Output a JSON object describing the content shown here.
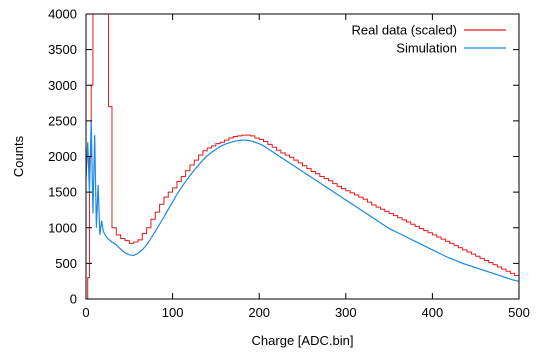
{
  "chart_data": {
    "type": "line",
    "title": "",
    "xlabel": "Charge [ADC.bin]",
    "ylabel": "Counts",
    "xlim": [
      0,
      500
    ],
    "ylim": [
      0,
      4000
    ],
    "xticks": [
      0,
      100,
      200,
      300,
      400,
      500
    ],
    "yticks": [
      0,
      500,
      1000,
      1500,
      2000,
      2500,
      3000,
      3500,
      4000
    ],
    "grid": false,
    "legend_position": "top-right",
    "series": [
      {
        "name": "Real data (scaled)",
        "color": "#e41a1c",
        "style": "step",
        "points": [
          [
            0,
            0
          ],
          [
            2,
            300
          ],
          [
            4,
            2000
          ],
          [
            6,
            3000
          ],
          [
            8,
            4000
          ],
          [
            10,
            4000
          ],
          [
            15,
            4000
          ],
          [
            20,
            4000
          ],
          [
            22,
            4000
          ],
          [
            24,
            4000
          ],
          [
            26,
            2700
          ],
          [
            28,
            2700
          ],
          [
            30,
            1000
          ],
          [
            35,
            900
          ],
          [
            40,
            850
          ],
          [
            45,
            820
          ],
          [
            50,
            780
          ],
          [
            55,
            800
          ],
          [
            60,
            830
          ],
          [
            65,
            920
          ],
          [
            70,
            1000
          ],
          [
            75,
            1120
          ],
          [
            80,
            1220
          ],
          [
            85,
            1330
          ],
          [
            90,
            1430
          ],
          [
            95,
            1500
          ],
          [
            100,
            1560
          ],
          [
            105,
            1650
          ],
          [
            110,
            1720
          ],
          [
            115,
            1800
          ],
          [
            120,
            1880
          ],
          [
            125,
            1950
          ],
          [
            130,
            2020
          ],
          [
            135,
            2080
          ],
          [
            140,
            2120
          ],
          [
            145,
            2150
          ],
          [
            150,
            2180
          ],
          [
            155,
            2200
          ],
          [
            160,
            2230
          ],
          [
            165,
            2260
          ],
          [
            170,
            2280
          ],
          [
            175,
            2290
          ],
          [
            180,
            2300
          ],
          [
            185,
            2300
          ],
          [
            190,
            2290
          ],
          [
            195,
            2260
          ],
          [
            200,
            2240
          ],
          [
            205,
            2210
          ],
          [
            210,
            2170
          ],
          [
            215,
            2130
          ],
          [
            220,
            2090
          ],
          [
            225,
            2050
          ],
          [
            230,
            2020
          ],
          [
            235,
            1990
          ],
          [
            240,
            1950
          ],
          [
            245,
            1910
          ],
          [
            250,
            1870
          ],
          [
            255,
            1830
          ],
          [
            260,
            1790
          ],
          [
            265,
            1760
          ],
          [
            270,
            1720
          ],
          [
            275,
            1690
          ],
          [
            280,
            1660
          ],
          [
            285,
            1620
          ],
          [
            290,
            1580
          ],
          [
            295,
            1550
          ],
          [
            300,
            1520
          ],
          [
            305,
            1490
          ],
          [
            310,
            1460
          ],
          [
            315,
            1430
          ],
          [
            320,
            1400
          ],
          [
            325,
            1360
          ],
          [
            330,
            1320
          ],
          [
            335,
            1290
          ],
          [
            340,
            1260
          ],
          [
            345,
            1230
          ],
          [
            350,
            1200
          ],
          [
            355,
            1170
          ],
          [
            360,
            1140
          ],
          [
            365,
            1110
          ],
          [
            370,
            1080
          ],
          [
            375,
            1050
          ],
          [
            380,
            1020
          ],
          [
            385,
            990
          ],
          [
            390,
            960
          ],
          [
            395,
            930
          ],
          [
            400,
            900
          ],
          [
            405,
            870
          ],
          [
            410,
            840
          ],
          [
            415,
            810
          ],
          [
            420,
            780
          ],
          [
            425,
            750
          ],
          [
            430,
            720
          ],
          [
            435,
            690
          ],
          [
            440,
            660
          ],
          [
            445,
            630
          ],
          [
            450,
            600
          ],
          [
            455,
            570
          ],
          [
            460,
            540
          ],
          [
            465,
            510
          ],
          [
            470,
            480
          ],
          [
            475,
            450
          ],
          [
            480,
            420
          ],
          [
            485,
            390
          ],
          [
            490,
            360
          ],
          [
            495,
            330
          ],
          [
            500,
            300
          ]
        ]
      },
      {
        "name": "Simulation",
        "color": "#1e88e5",
        "style": "line",
        "points": [
          [
            0,
            1700
          ],
          [
            2,
            2200
          ],
          [
            4,
            1500
          ],
          [
            6,
            2500
          ],
          [
            8,
            1200
          ],
          [
            10,
            2300
          ],
          [
            12,
            1000
          ],
          [
            14,
            1600
          ],
          [
            16,
            900
          ],
          [
            18,
            1100
          ],
          [
            20,
            950
          ],
          [
            22,
            900
          ],
          [
            25,
            850
          ],
          [
            30,
            800
          ],
          [
            35,
            760
          ],
          [
            40,
            700
          ],
          [
            45,
            650
          ],
          [
            50,
            620
          ],
          [
            55,
            610
          ],
          [
            60,
            640
          ],
          [
            65,
            690
          ],
          [
            70,
            760
          ],
          [
            75,
            850
          ],
          [
            80,
            950
          ],
          [
            85,
            1050
          ],
          [
            90,
            1150
          ],
          [
            95,
            1260
          ],
          [
            100,
            1360
          ],
          [
            105,
            1470
          ],
          [
            110,
            1560
          ],
          [
            115,
            1650
          ],
          [
            120,
            1730
          ],
          [
            125,
            1810
          ],
          [
            130,
            1880
          ],
          [
            135,
            1950
          ],
          [
            140,
            2010
          ],
          [
            145,
            2060
          ],
          [
            150,
            2100
          ],
          [
            155,
            2140
          ],
          [
            160,
            2170
          ],
          [
            165,
            2190
          ],
          [
            170,
            2210
          ],
          [
            175,
            2220
          ],
          [
            180,
            2230
          ],
          [
            185,
            2230
          ],
          [
            190,
            2220
          ],
          [
            195,
            2200
          ],
          [
            200,
            2180
          ],
          [
            205,
            2150
          ],
          [
            210,
            2110
          ],
          [
            215,
            2070
          ],
          [
            220,
            2030
          ],
          [
            225,
            1990
          ],
          [
            230,
            1950
          ],
          [
            235,
            1910
          ],
          [
            240,
            1870
          ],
          [
            245,
            1830
          ],
          [
            250,
            1790
          ],
          [
            255,
            1750
          ],
          [
            260,
            1710
          ],
          [
            265,
            1670
          ],
          [
            270,
            1630
          ],
          [
            275,
            1590
          ],
          [
            280,
            1550
          ],
          [
            285,
            1510
          ],
          [
            290,
            1470
          ],
          [
            295,
            1430
          ],
          [
            300,
            1390
          ],
          [
            305,
            1350
          ],
          [
            310,
            1310
          ],
          [
            315,
            1270
          ],
          [
            320,
            1230
          ],
          [
            325,
            1190
          ],
          [
            330,
            1150
          ],
          [
            335,
            1110
          ],
          [
            340,
            1070
          ],
          [
            345,
            1030
          ],
          [
            350,
            990
          ],
          [
            355,
            960
          ],
          [
            360,
            930
          ],
          [
            365,
            900
          ],
          [
            370,
            870
          ],
          [
            375,
            840
          ],
          [
            380,
            810
          ],
          [
            385,
            780
          ],
          [
            390,
            750
          ],
          [
            395,
            720
          ],
          [
            400,
            690
          ],
          [
            405,
            660
          ],
          [
            410,
            630
          ],
          [
            415,
            600
          ],
          [
            420,
            575
          ],
          [
            425,
            550
          ],
          [
            430,
            525
          ],
          [
            435,
            500
          ],
          [
            440,
            480
          ],
          [
            445,
            460
          ],
          [
            450,
            440
          ],
          [
            455,
            420
          ],
          [
            460,
            400
          ],
          [
            465,
            380
          ],
          [
            470,
            360
          ],
          [
            475,
            340
          ],
          [
            480,
            320
          ],
          [
            485,
            300
          ],
          [
            490,
            280
          ],
          [
            495,
            260
          ],
          [
            500,
            250
          ]
        ]
      }
    ]
  }
}
